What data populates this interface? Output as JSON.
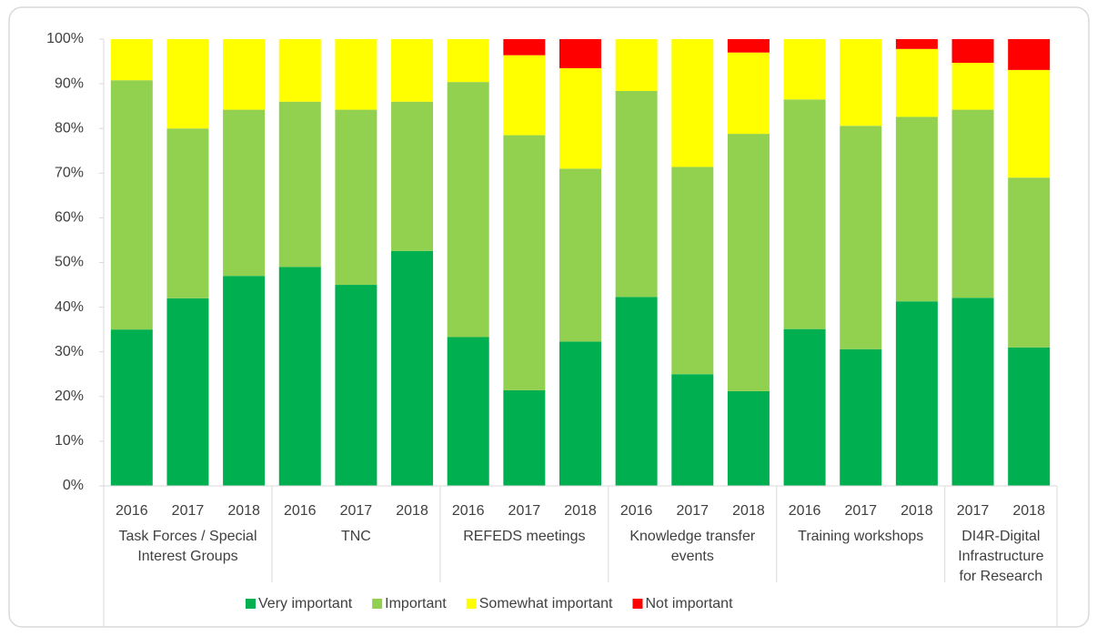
{
  "chart_data": {
    "type": "stacked_bar",
    "groups": [
      {
        "label": "Task Forces / Special Interest Groups",
        "categories": [
          "2016",
          "2017",
          "2018"
        ]
      },
      {
        "label": "TNC",
        "categories": [
          "2016",
          "2017",
          "2018"
        ]
      },
      {
        "label": "REFEDS meetings",
        "categories": [
          "2016",
          "2017",
          "2018"
        ]
      },
      {
        "label": "Knowledge transfer events",
        "categories": [
          "2016",
          "2017",
          "2018"
        ]
      },
      {
        "label": "Training workshops",
        "categories": [
          "2016",
          "2017",
          "2018"
        ]
      },
      {
        "label": "DI4R-Digital Infrastructure for Research",
        "categories": [
          "2017",
          "2018"
        ]
      }
    ],
    "series": [
      {
        "name": "Very important",
        "color": "#00b050",
        "values": [
          35,
          42,
          47,
          49,
          45,
          52.6,
          33.3,
          21.4,
          32.3,
          42.3,
          25,
          21.2,
          35.1,
          30.6,
          41.3,
          42.1,
          31
        ]
      },
      {
        "name": "Important",
        "color": "#92d050",
        "values": [
          55.8,
          38,
          37.2,
          37,
          39.2,
          33.4,
          57.1,
          57.1,
          38.7,
          46.1,
          46.4,
          57.6,
          51.4,
          50,
          41.3,
          42.1,
          38
        ]
      },
      {
        "name": "Somewhat important",
        "color": "#ffff00",
        "values": [
          9.2,
          20,
          15.8,
          14,
          15.8,
          14,
          9.6,
          17.9,
          22.5,
          11.6,
          28.6,
          18.2,
          13.5,
          19.4,
          15.2,
          10.5,
          24.1
        ]
      },
      {
        "name": "Not important",
        "color": "#ff0000",
        "values": [
          0,
          0,
          0,
          0,
          0,
          0,
          0,
          3.6,
          6.5,
          0,
          0,
          3,
          0,
          0,
          2.2,
          5.3,
          6.9
        ]
      }
    ],
    "ylim": [
      0,
      100
    ],
    "yticks": [
      {
        "value": 0,
        "label": "0%"
      },
      {
        "value": 10,
        "label": "10%"
      },
      {
        "value": 20,
        "label": "20%"
      },
      {
        "value": 30,
        "label": "30%"
      },
      {
        "value": 40,
        "label": "40%"
      },
      {
        "value": 50,
        "label": "50%"
      },
      {
        "value": 60,
        "label": "60%"
      },
      {
        "value": 70,
        "label": "70%"
      },
      {
        "value": 80,
        "label": "80%"
      },
      {
        "value": 90,
        "label": "90%"
      },
      {
        "value": 100,
        "label": "100%"
      }
    ],
    "grid": false,
    "legend": "bottom"
  }
}
